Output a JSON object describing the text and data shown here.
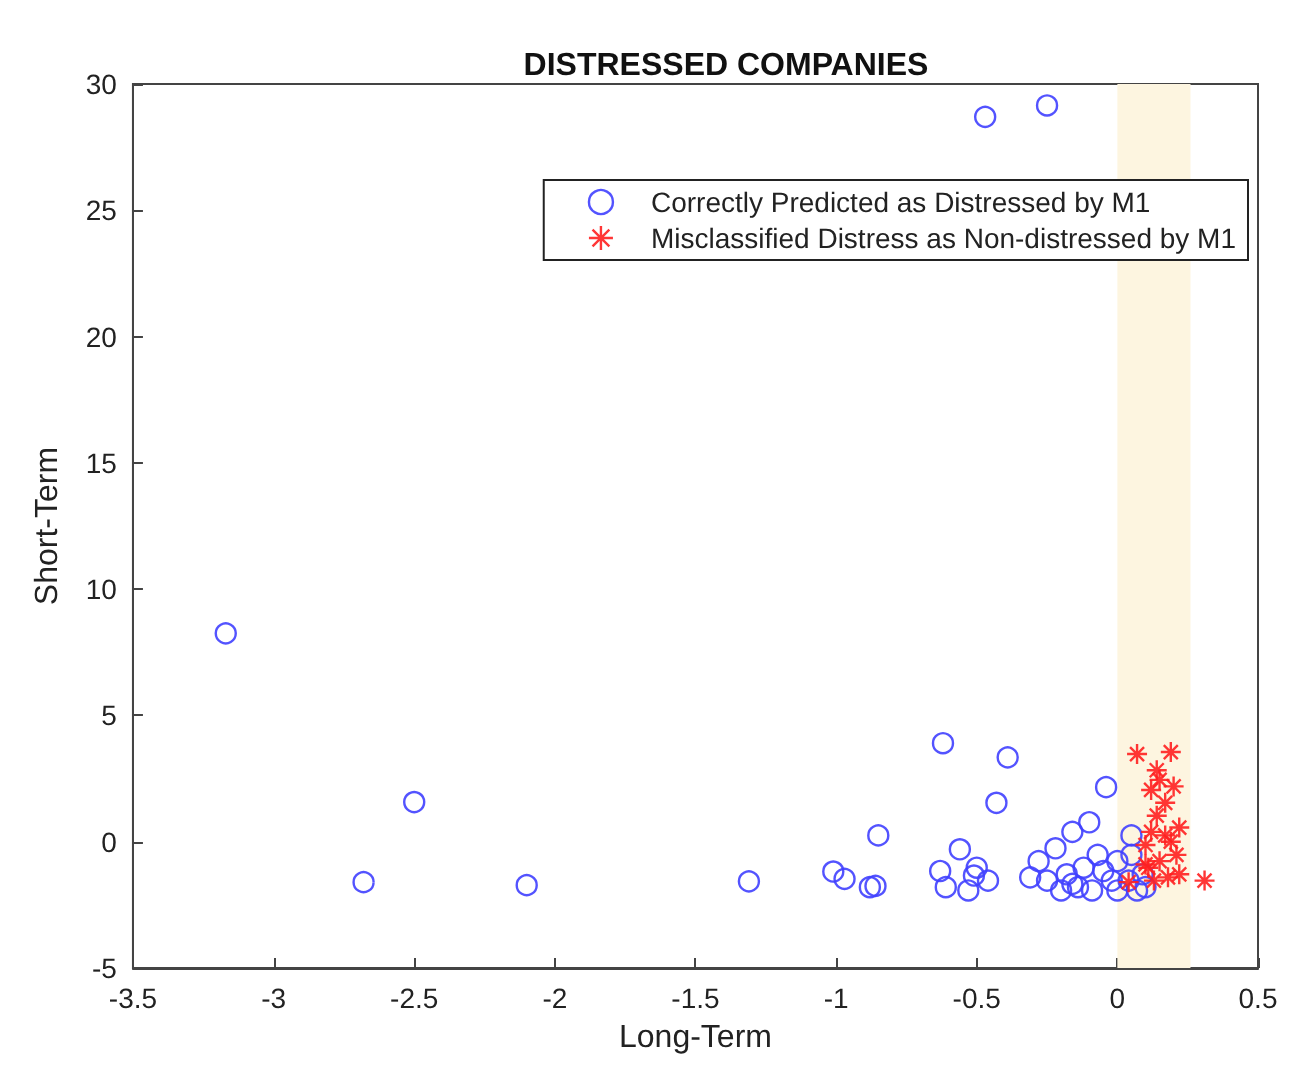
{
  "chart_data": {
    "type": "scatter",
    "title": "DISTRESSED COMPANIES",
    "xlabel": "Long-Term",
    "ylabel": "Short-Term",
    "xlim": [
      -3.5,
      0.5
    ],
    "xticks": [
      -3.5,
      -3,
      -2.5,
      -2,
      -1.5,
      -1,
      -0.5,
      0,
      0.5
    ],
    "ylim": [
      -5,
      30
    ],
    "yticks": [
      -5,
      0,
      5,
      10,
      15,
      20,
      25,
      30
    ],
    "grid": false,
    "legend": "top right",
    "bands": [
      {
        "axis": "x",
        "from": 0,
        "to": 0.26,
        "color": "#fdf5e0"
      }
    ],
    "series": [
      {
        "name": "Correctly Predicted as Distressed by M1",
        "color": "#4040ff",
        "marker": "circle",
        "x": [
          -3.17,
          -2.68,
          -2.5,
          -2.1,
          -1.31,
          -1.01,
          -0.97,
          -0.88,
          -0.47,
          -0.25,
          -0.62,
          -0.39,
          -0.43,
          -0.85,
          -0.86,
          -0.56,
          -0.63,
          -0.5,
          -0.61,
          -0.53,
          -0.51,
          -0.46,
          -0.04,
          -0.1,
          -0.16,
          -0.22,
          -0.28,
          -0.31,
          -0.25,
          -0.18,
          -0.14,
          -0.07,
          0.0,
          0.05,
          0.04,
          0.07,
          -0.02,
          -0.09,
          -0.2,
          -0.05,
          -0.12,
          0.05,
          0.09,
          0.1,
          -0.16,
          0.0
        ],
        "values": [
          8.25,
          -1.6,
          1.57,
          -1.72,
          -1.57,
          -1.18,
          -1.47,
          -1.8,
          28.7,
          29.15,
          3.9,
          3.34,
          1.54,
          0.25,
          -1.75,
          -0.3,
          -1.16,
          -1.03,
          -1.8,
          -1.93,
          -1.34,
          -1.54,
          2.16,
          0.77,
          0.39,
          -0.26,
          -0.77,
          -1.41,
          -1.54,
          -1.29,
          -1.8,
          -0.52,
          -0.77,
          0.25,
          -1.54,
          -1.93,
          -1.54,
          -1.93,
          -1.93,
          -1.16,
          -1.03,
          -0.52,
          -1.29,
          -1.8,
          -1.67,
          -1.93
        ]
      },
      {
        "name": "Misclassified Distress as Non-distressed by M1",
        "color": "#ff2020",
        "marker": "cross",
        "x": [
          0.07,
          0.19,
          0.14,
          0.15,
          0.2,
          0.12,
          0.17,
          0.14,
          0.22,
          0.12,
          0.19,
          0.1,
          0.21,
          0.15,
          0.11,
          0.22,
          0.18,
          0.04,
          0.13,
          0.31,
          0.1,
          0.17
        ],
        "values": [
          3.47,
          3.55,
          2.83,
          2.45,
          2.19,
          2.05,
          1.54,
          1.03,
          0.56,
          0.39,
          0,
          -0.13,
          -0.52,
          -0.77,
          -1.03,
          -1.29,
          -1.41,
          -1.6,
          -1.54,
          -1.54,
          -0.9,
          0.25
        ]
      }
    ]
  }
}
